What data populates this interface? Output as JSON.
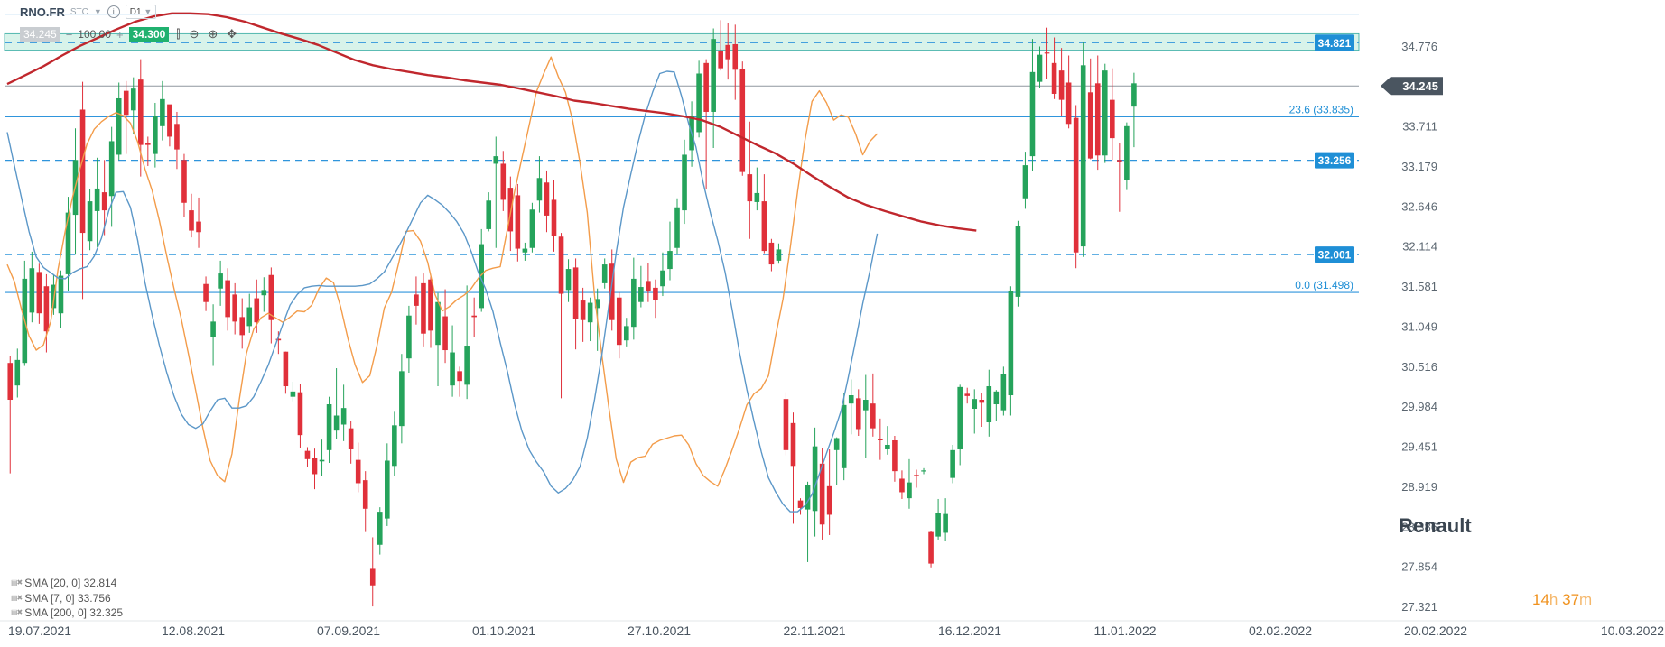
{
  "header": {
    "symbol": "RNO.FR",
    "subtype": "STC",
    "timeframe": "D1",
    "sell_price": "34.245",
    "volume": "100.00",
    "buy_price": "34.300"
  },
  "watermark": "Renault",
  "timer": {
    "hours": "14",
    "h_unit": "h",
    "minutes": "37",
    "m_unit": "m"
  },
  "legend": [
    {
      "text": "SMA [20, 0] 32.814",
      "color": "#5b97c8"
    },
    {
      "text": "SMA [7, 0] 33.756",
      "color": "#f39c4a"
    },
    {
      "text": "SMA [200, 0] 32.325",
      "color": "#c0272d"
    }
  ],
  "colors": {
    "bull": "#25a35b",
    "bear": "#e0303a",
    "sma7": "#f39c4a",
    "sma20": "#5b97c8",
    "sma200": "#c0272d",
    "fib": "#2f95dc",
    "last": "#4a5560"
  },
  "chart_data": {
    "type": "candlestick",
    "title": "RNO.FR",
    "xlabel": "",
    "ylabel": "",
    "ylim": [
      27.32,
      35.2
    ],
    "y_ticks": [
      "34.776",
      "34.245",
      "33.711",
      "33.179",
      "32.646",
      "32.114",
      "31.581",
      "31.049",
      "30.516",
      "29.984",
      "29.451",
      "28.919",
      "28.386",
      "27.854",
      "27.321"
    ],
    "x_ticks": [
      "19.07.2021",
      "12.08.2021",
      "07.09.2021",
      "01.10.2021",
      "27.10.2021",
      "22.11.2021",
      "16.12.2021",
      "11.01.2022",
      "02.02.2022",
      "20.02.2022",
      "10.03.2022"
    ],
    "last_price": "34.245",
    "levels": [
      {
        "value": 34.821,
        "label": "34.821",
        "style": "dashed",
        "badge": true
      },
      {
        "value": 33.835,
        "label": "23.6 (33.835)",
        "style": "solid",
        "badge": false
      },
      {
        "value": 33.256,
        "label": "33.256",
        "style": "dashed",
        "badge": true
      },
      {
        "value": 32.001,
        "label": "32.001",
        "style": "dashed",
        "badge": true
      },
      {
        "value": 31.498,
        "label": "0.0 (31.498)",
        "style": "solid",
        "badge": false
      }
    ],
    "candles": [
      [
        30.56,
        30.07,
        29.09,
        30.65
      ],
      [
        30.26,
        30.6,
        30.1,
        30.75
      ],
      [
        30.56,
        31.68,
        30.52,
        31.92
      ],
      [
        31.23,
        31.82,
        31.1,
        32.04
      ],
      [
        31.77,
        31.22,
        31.08,
        31.88
      ],
      [
        31.58,
        30.98,
        30.7,
        31.74
      ],
      [
        31.29,
        31.6,
        31.2,
        31.74
      ],
      [
        31.22,
        31.72,
        31.02,
        31.79
      ],
      [
        31.74,
        32.56,
        31.52,
        32.77
      ],
      [
        32.53,
        33.26,
        32.0,
        33.68
      ],
      [
        33.93,
        32.29,
        31.41,
        34.3
      ],
      [
        32.18,
        32.71,
        32.06,
        32.87
      ],
      [
        32.58,
        32.88,
        32.1,
        33.29
      ],
      [
        32.83,
        32.59,
        32.26,
        33.26
      ],
      [
        32.78,
        33.51,
        32.37,
        33.7
      ],
      [
        33.33,
        34.08,
        33.26,
        34.29
      ],
      [
        34.18,
        33.86,
        33.34,
        34.31
      ],
      [
        33.92,
        34.21,
        33.61,
        34.36
      ],
      [
        34.33,
        33.46,
        33.04,
        34.6
      ],
      [
        33.48,
        33.46,
        33.18,
        33.57
      ],
      [
        33.34,
        33.85,
        33.16,
        34.02
      ],
      [
        33.71,
        34.07,
        33.52,
        34.31
      ],
      [
        34.0,
        33.57,
        33.44,
        33.94
      ],
      [
        33.74,
        33.4,
        33.14,
        33.9
      ],
      [
        33.26,
        32.69,
        32.5,
        33.34
      ],
      [
        32.59,
        32.32,
        32.23,
        32.81
      ],
      [
        32.44,
        32.3,
        32.09,
        32.76
      ],
      [
        31.61,
        31.37,
        31.25,
        31.71
      ],
      [
        30.9,
        31.11,
        30.52,
        31.34
      ],
      [
        31.55,
        31.75,
        31.32,
        31.92
      ],
      [
        31.66,
        31.17,
        30.99,
        31.82
      ],
      [
        31.47,
        31.11,
        30.94,
        31.62
      ],
      [
        31.17,
        30.93,
        30.75,
        31.42
      ],
      [
        31.05,
        31.3,
        30.96,
        31.48
      ],
      [
        31.42,
        31.1,
        30.96,
        31.67
      ],
      [
        31.46,
        31.53,
        31.24,
        31.7
      ],
      [
        31.73,
        31.13,
        30.82,
        31.83
      ],
      [
        30.88,
        30.86,
        30.68,
        30.98
      ],
      [
        30.71,
        30.25,
        30.15,
        30.71
      ],
      [
        30.11,
        30.18,
        30.05,
        30.31
      ],
      [
        30.17,
        29.6,
        29.43,
        30.28
      ],
      [
        29.39,
        29.28,
        29.17,
        29.44
      ],
      [
        29.29,
        29.08,
        28.88,
        29.42
      ],
      [
        29.25,
        29.27,
        29.06,
        29.54
      ],
      [
        29.4,
        30.01,
        29.23,
        30.11
      ],
      [
        29.66,
        29.86,
        29.55,
        30.49
      ],
      [
        29.74,
        29.96,
        29.52,
        30.27
      ],
      [
        29.69,
        29.41,
        29.22,
        29.79
      ],
      [
        29.27,
        28.96,
        28.84,
        29.5
      ],
      [
        29.0,
        28.62,
        28.31,
        29.12
      ],
      [
        27.82,
        27.6,
        27.32,
        28.24
      ],
      [
        28.14,
        28.58,
        28.01,
        28.64
      ],
      [
        28.49,
        29.26,
        28.39,
        29.49
      ],
      [
        29.19,
        29.73,
        29.06,
        29.91
      ],
      [
        29.72,
        30.45,
        29.49,
        30.68
      ],
      [
        30.62,
        31.19,
        30.43,
        31.32
      ],
      [
        31.47,
        31.32,
        31.07,
        31.71
      ],
      [
        31.62,
        30.95,
        30.78,
        31.75
      ],
      [
        31.67,
        30.99,
        30.76,
        31.74
      ],
      [
        30.8,
        31.37,
        30.25,
        31.49
      ],
      [
        31.18,
        30.73,
        30.56,
        31.54
      ],
      [
        30.26,
        30.7,
        30.11,
        31.06
      ],
      [
        30.45,
        30.32,
        30.11,
        30.51
      ],
      [
        30.27,
        30.79,
        30.08,
        31.59
      ],
      [
        31.19,
        31.17,
        30.91,
        31.43
      ],
      [
        31.29,
        32.14,
        31.24,
        32.34
      ],
      [
        32.34,
        32.72,
        32.31,
        32.83
      ],
      [
        33.21,
        33.31,
        32.09,
        33.57
      ],
      [
        33.21,
        32.73,
        32.58,
        33.38
      ],
      [
        32.89,
        32.31,
        32.05,
        33.04
      ],
      [
        32.79,
        32.08,
        31.91,
        32.94
      ],
      [
        32.03,
        32.08,
        31.92,
        32.16
      ],
      [
        32.09,
        32.6,
        32.03,
        32.69
      ],
      [
        32.72,
        33.02,
        32.56,
        33.31
      ],
      [
        32.96,
        32.52,
        32.3,
        33.12
      ],
      [
        32.73,
        32.25,
        32.04,
        33.0
      ],
      [
        32.24,
        31.48,
        30.09,
        32.29
      ],
      [
        31.53,
        31.81,
        31.37,
        31.94
      ],
      [
        31.83,
        31.14,
        30.74,
        31.95
      ],
      [
        31.39,
        31.13,
        30.84,
        31.56
      ],
      [
        31.1,
        31.36,
        30.85,
        31.43
      ],
      [
        31.29,
        31.41,
        30.72,
        31.55
      ],
      [
        31.62,
        31.87,
        31.55,
        31.95
      ],
      [
        31.88,
        31.13,
        30.99,
        32.07
      ],
      [
        31.43,
        30.8,
        30.62,
        31.5
      ],
      [
        30.86,
        31.05,
        30.78,
        31.16
      ],
      [
        31.04,
        31.68,
        30.87,
        31.96
      ],
      [
        31.37,
        31.57,
        31.3,
        31.85
      ],
      [
        31.65,
        31.51,
        31.37,
        31.89
      ],
      [
        31.56,
        31.4,
        31.16,
        31.67
      ],
      [
        31.58,
        31.79,
        31.45,
        32.03
      ],
      [
        31.81,
        32.05,
        31.66,
        32.44
      ],
      [
        32.09,
        32.63,
        32.0,
        32.75
      ],
      [
        32.59,
        33.33,
        32.41,
        33.53
      ],
      [
        33.39,
        33.84,
        33.17,
        34.04
      ],
      [
        33.63,
        34.41,
        33.56,
        34.58
      ],
      [
        34.55,
        33.9,
        32.87,
        34.6
      ],
      [
        33.9,
        34.87,
        33.42,
        35.01
      ],
      [
        34.71,
        34.48,
        34.45,
        35.12
      ],
      [
        34.79,
        34.6,
        34.33,
        35.08
      ],
      [
        34.8,
        34.46,
        34.06,
        35.06
      ],
      [
        34.47,
        33.1,
        33.05,
        34.57
      ],
      [
        33.07,
        32.71,
        32.21,
        33.77
      ],
      [
        32.7,
        32.82,
        32.59,
        33.16
      ],
      [
        32.71,
        32.05,
        32.02,
        33.07
      ],
      [
        32.16,
        31.87,
        31.78,
        32.21
      ],
      [
        31.92,
        32.07,
        31.88,
        32.15
      ],
      [
        30.08,
        29.4,
        29.33,
        30.17
      ],
      [
        29.76,
        29.19,
        28.42,
        29.9
      ],
      [
        28.73,
        28.63,
        28.54,
        28.76
      ],
      [
        28.61,
        28.94,
        27.91,
        28.98
      ],
      [
        28.59,
        29.45,
        28.25,
        29.7
      ],
      [
        29.22,
        28.41,
        28.21,
        29.43
      ],
      [
        28.92,
        28.54,
        28.27,
        29.41
      ],
      [
        29.4,
        29.56,
        28.93,
        29.57
      ],
      [
        29.16,
        30.0,
        29.0,
        30.16
      ],
      [
        30.02,
        30.13,
        29.61,
        30.34
      ],
      [
        30.09,
        29.68,
        29.59,
        30.21
      ],
      [
        29.93,
        30.07,
        29.29,
        30.4
      ],
      [
        30.02,
        29.69,
        29.58,
        30.42
      ],
      [
        29.55,
        29.53,
        29.27,
        29.82
      ],
      [
        29.41,
        29.47,
        29.34,
        29.72
      ],
      [
        29.53,
        29.12,
        28.98,
        29.59
      ],
      [
        29.02,
        28.84,
        28.75,
        29.13
      ],
      [
        28.76,
        28.97,
        28.62,
        29.28
      ],
      [
        29.07,
        29.05,
        28.9,
        29.14
      ],
      [
        29.12,
        29.13,
        29.08,
        29.16
      ],
      [
        28.31,
        27.89,
        27.84,
        28.32
      ],
      [
        28.25,
        28.56,
        28.21,
        28.75
      ],
      [
        28.3,
        28.55,
        28.19,
        28.76
      ],
      [
        29.03,
        29.4,
        28.96,
        29.47
      ],
      [
        29.41,
        30.24,
        29.2,
        30.27
      ],
      [
        30.15,
        30.12,
        30.02,
        30.23
      ],
      [
        29.95,
        30.08,
        29.62,
        30.21
      ],
      [
        30.07,
        30.03,
        29.71,
        30.16
      ],
      [
        29.77,
        30.25,
        29.58,
        30.47
      ],
      [
        30.01,
        30.18,
        29.79,
        30.2
      ],
      [
        29.93,
        30.41,
        29.86,
        30.51
      ],
      [
        30.13,
        31.52,
        29.86,
        31.58
      ],
      [
        31.44,
        32.38,
        31.31,
        32.45
      ],
      [
        32.75,
        33.19,
        32.61,
        33.37
      ],
      [
        33.31,
        34.43,
        33.11,
        34.87
      ],
      [
        34.3,
        34.66,
        34.22,
        34.77
      ],
      [
        34.69,
        34.68,
        34.34,
        35.02
      ],
      [
        34.55,
        34.14,
        34.07,
        34.89
      ],
      [
        34.45,
        34.06,
        33.85,
        34.75
      ],
      [
        34.29,
        33.74,
        33.68,
        34.65
      ],
      [
        33.82,
        32.03,
        31.82,
        33.99
      ],
      [
        32.11,
        34.52,
        31.97,
        34.83
      ],
      [
        34.16,
        33.28,
        33.27,
        34.61
      ],
      [
        34.28,
        33.32,
        33.13,
        34.65
      ],
      [
        33.32,
        34.45,
        33.22,
        34.54
      ],
      [
        34.06,
        33.55,
        33.26,
        34.48
      ],
      [
        33.26,
        33.24,
        32.57,
        33.48
      ],
      [
        32.99,
        33.71,
        32.86,
        33.76
      ],
      [
        33.97,
        34.28,
        33.43,
        34.42
      ]
    ],
    "series": [
      {
        "name": "SMA [7, 0] 33.756",
        "values": [
          31.87,
          31.64,
          31.26,
          30.92,
          30.73,
          30.8,
          31.11,
          31.8,
          32.31,
          32.76,
          33.13,
          33.47,
          33.67,
          33.77,
          33.84,
          33.89,
          33.85,
          33.75,
          33.5,
          33.14,
          32.85,
          32.45,
          31.98,
          31.55,
          31.15,
          30.68,
          30.19,
          29.69,
          29.26,
          29.06,
          28.98,
          29.35,
          30.07,
          30.69,
          31.01,
          31.16,
          31.22,
          31.16,
          31.1,
          31.17,
          31.25,
          31.24,
          31.33,
          31.55,
          31.69,
          31.63,
          31.3,
          30.88,
          30.53,
          30.3,
          30.39,
          30.79,
          31.29,
          31.5,
          31.89,
          32.31,
          32.32,
          32.18,
          31.9,
          31.47,
          31.25,
          31.31,
          31.4,
          31.46,
          31.55,
          31.69,
          31.79,
          31.82,
          31.84,
          32.35,
          32.85,
          33.29,
          33.73,
          34.17,
          34.41,
          34.63,
          34.37,
          34.16,
          33.78,
          33.22,
          32.56,
          31.46,
          30.67,
          29.95,
          29.28,
          28.97,
          29.24,
          29.3,
          29.32,
          29.48,
          29.53,
          29.56,
          29.59,
          29.6,
          29.47,
          29.22,
          29.06,
          28.98,
          28.92,
          29.15,
          29.41,
          29.69,
          30.0,
          30.15,
          30.22,
          30.39,
          30.93,
          31.41,
          32.09,
          32.84,
          33.51,
          34.04,
          34.18,
          34.02,
          33.79,
          33.86,
          33.83,
          33.61,
          33.33,
          33.51,
          33.61
        ]
      },
      {
        "name": "SMA [20, 0] 32.814",
        "values": [
          33.63,
          33.18,
          32.74,
          32.31,
          31.97,
          31.83,
          31.76,
          31.69,
          31.68,
          31.76,
          31.81,
          31.84,
          31.98,
          32.22,
          32.58,
          32.83,
          32.84,
          32.63,
          32.19,
          31.63,
          31.19,
          30.79,
          30.43,
          30.12,
          29.88,
          29.74,
          29.69,
          29.75,
          29.92,
          30.07,
          30.09,
          29.96,
          29.96,
          29.99,
          30.11,
          30.31,
          30.53,
          30.8,
          31.07,
          31.33,
          31.47,
          31.56,
          31.58,
          31.59,
          31.58,
          31.58,
          31.58,
          31.58,
          31.58,
          31.59,
          31.61,
          31.68,
          31.77,
          31.94,
          32.11,
          32.29,
          32.49,
          32.69,
          32.79,
          32.73,
          32.66,
          32.56,
          32.44,
          32.28,
          32.04,
          31.76,
          31.54,
          31.24,
          30.83,
          30.44,
          30.0,
          29.65,
          29.4,
          29.24,
          29.11,
          28.92,
          28.83,
          28.89,
          29.0,
          29.18,
          29.56,
          30.07,
          30.66,
          31.34,
          32.03,
          32.63,
          33.07,
          33.49,
          33.86,
          34.16,
          34.41,
          34.44,
          34.43,
          34.11,
          33.74,
          33.43,
          32.95,
          32.55,
          32.19,
          31.77,
          31.26,
          30.7,
          30.21,
          29.78,
          29.38,
          29.03,
          28.84,
          28.68,
          28.58,
          28.58,
          28.66,
          28.81,
          29.08,
          29.36,
          29.63,
          29.92,
          30.37,
          30.85,
          31.35,
          31.79,
          32.28
        ]
      },
      {
        "name": "SMA [200, 0] 32.325",
        "values": [
          34.27,
          34.39,
          34.51,
          34.65,
          34.78,
          34.89,
          35.0,
          35.1,
          35.17,
          35.21,
          35.21,
          35.2,
          35.16,
          35.1,
          35.02,
          34.94,
          34.87,
          34.79,
          34.69,
          34.59,
          34.52,
          34.47,
          34.43,
          34.39,
          34.36,
          34.32,
          34.29,
          34.26,
          34.21,
          34.16,
          34.11,
          34.05,
          34.02,
          33.98,
          33.94,
          33.91,
          33.88,
          33.84,
          33.79,
          33.7,
          33.58,
          33.46,
          33.35,
          33.21,
          33.05,
          32.9,
          32.76,
          32.66,
          32.58,
          32.51,
          32.44,
          32.39,
          32.35,
          32.32
        ]
      }
    ]
  }
}
